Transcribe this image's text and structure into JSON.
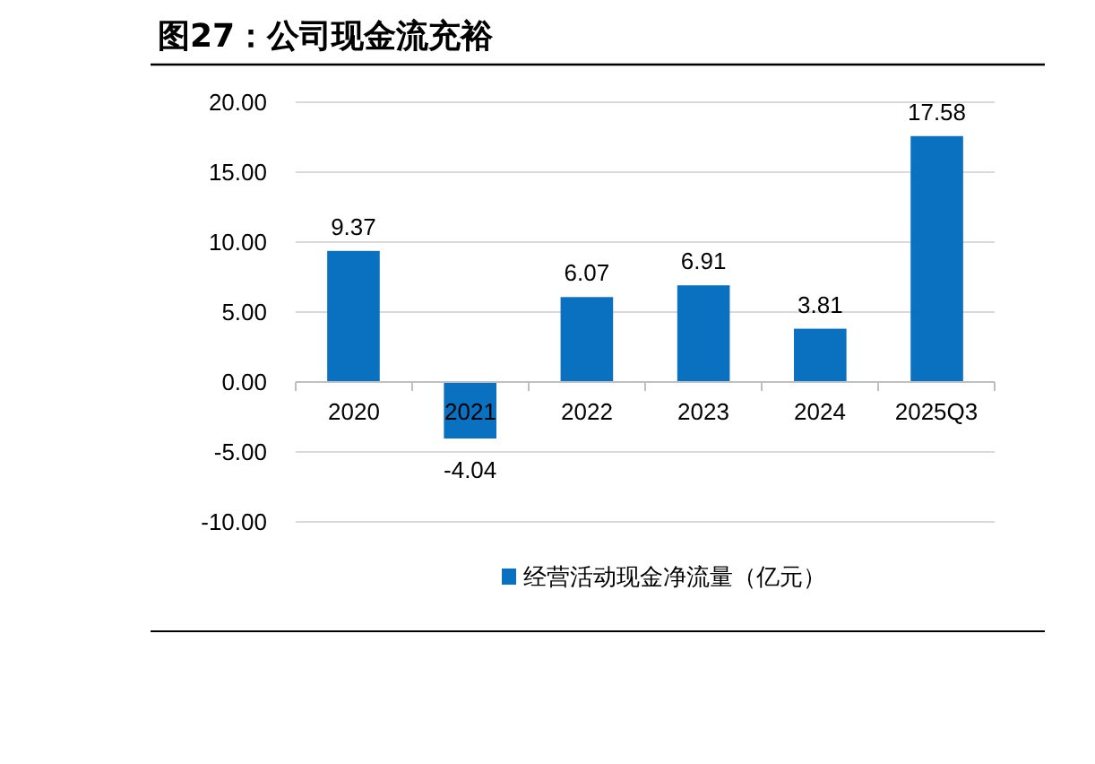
{
  "chart_data": {
    "type": "bar",
    "title": "图27：公司现金流充裕",
    "categories": [
      "2020",
      "2021",
      "2022",
      "2023",
      "2024",
      "2025Q3"
    ],
    "series": [
      {
        "name": "经营活动现金净流量（亿元）",
        "color": "#0a70c0",
        "values": [
          9.37,
          -4.04,
          6.07,
          6.91,
          3.81,
          17.58
        ]
      }
    ],
    "ylim": [
      -10,
      20
    ],
    "yticks": [
      {
        "value": -10,
        "label": "-10.00"
      },
      {
        "value": -5,
        "label": "-5.00"
      },
      {
        "value": 0,
        "label": "0.00"
      },
      {
        "value": 5,
        "label": "5.00"
      },
      {
        "value": 10,
        "label": "10.00"
      },
      {
        "value": 15,
        "label": "15.00"
      },
      {
        "value": 20,
        "label": "20.00"
      }
    ],
    "grid": "y",
    "legend": "bottom",
    "data_labels": true
  }
}
